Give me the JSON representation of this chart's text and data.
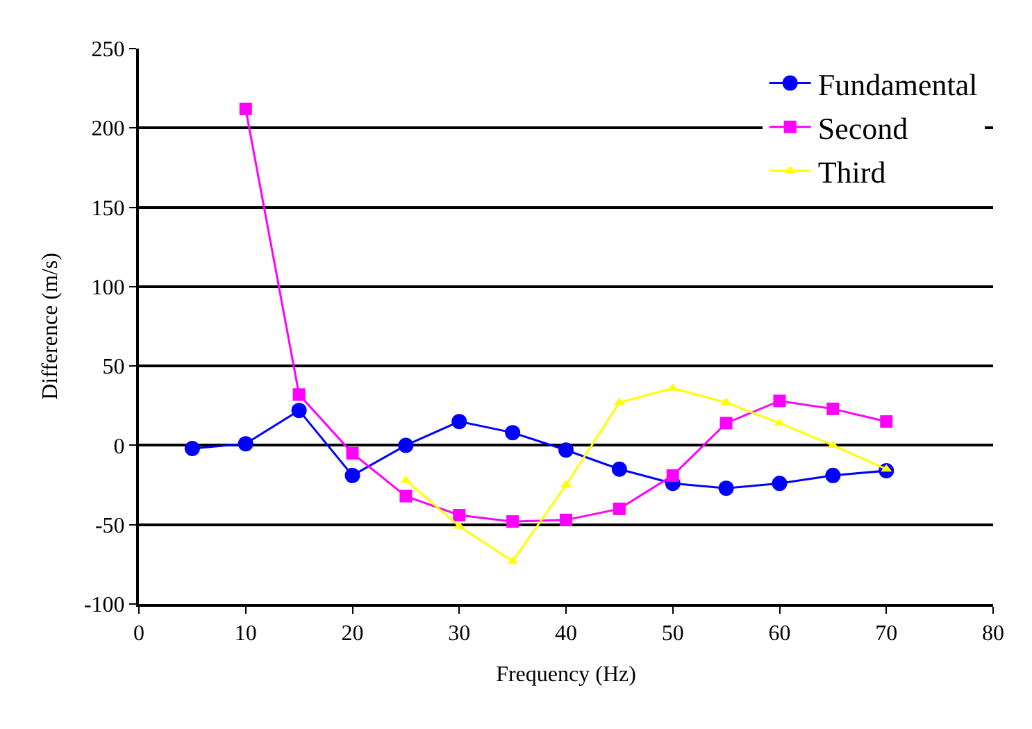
{
  "chart_data": {
    "type": "line",
    "xlabel": "Frequency (Hz)",
    "ylabel": "Difference (m/s)",
    "xlim": [
      0,
      80
    ],
    "xticks": [
      0,
      10,
      20,
      30,
      40,
      50,
      60,
      70,
      80
    ],
    "ylim": [
      -100,
      250
    ],
    "yticks": [
      -100,
      -50,
      0,
      50,
      100,
      150,
      200,
      250
    ],
    "grid": "y",
    "legend": "top right",
    "series": [
      {
        "name": "Fundamental",
        "color": "#0000ff",
        "marker": "circle",
        "x": [
          5,
          10,
          15,
          20,
          25,
          30,
          35,
          40,
          45,
          50,
          55,
          60,
          65,
          70
        ],
        "values": [
          -2,
          1,
          22,
          -19,
          0,
          15,
          8,
          -3,
          -15,
          -24,
          -27,
          -24,
          -19,
          -16
        ]
      },
      {
        "name": "Second",
        "color": "#ff00ff",
        "marker": "square",
        "x": [
          10,
          15,
          20,
          25,
          30,
          35,
          40,
          45,
          50,
          55,
          60,
          65,
          70
        ],
        "values": [
          212,
          32,
          -5,
          -32,
          -44,
          -48,
          -47,
          -40,
          -19,
          14,
          28,
          23,
          15
        ]
      },
      {
        "name": "Third",
        "color": "#ffff00",
        "marker": "triangle",
        "x": [
          25,
          30,
          35,
          40,
          45,
          50,
          55,
          60,
          65,
          70
        ],
        "values": [
          -22,
          -51,
          -73,
          -25,
          27,
          36,
          27,
          14,
          0,
          -15
        ]
      }
    ]
  }
}
